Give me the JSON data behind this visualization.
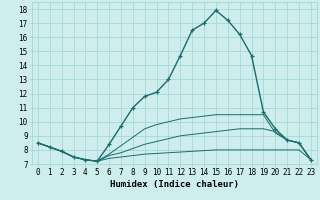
{
  "xlabel": "Humidex (Indice chaleur)",
  "bg_color": "#ceeeed",
  "grid_color": "#9fd4d3",
  "line_color": "#1a6b6b",
  "line1_x": [
    0,
    1,
    2,
    3,
    4,
    5,
    6,
    7,
    8,
    9,
    10,
    11,
    12,
    13,
    14,
    15,
    16,
    17,
    18,
    19,
    20,
    21,
    22,
    23
  ],
  "line1_y": [
    8.5,
    8.2,
    7.9,
    7.5,
    7.3,
    7.2,
    8.4,
    9.7,
    11.0,
    11.8,
    12.1,
    13.0,
    14.7,
    16.5,
    17.0,
    17.9,
    17.2,
    16.2,
    14.7,
    10.7,
    9.5,
    8.7,
    8.5,
    7.3
  ],
  "line2_x": [
    0,
    1,
    2,
    3,
    4,
    5,
    6,
    7,
    8,
    9,
    10,
    11,
    12,
    13,
    14,
    15,
    16,
    17,
    18,
    19,
    20,
    21,
    22,
    23
  ],
  "line2_y": [
    8.5,
    8.2,
    7.9,
    7.5,
    7.3,
    7.2,
    7.4,
    7.5,
    7.6,
    7.7,
    7.75,
    7.8,
    7.85,
    7.9,
    7.95,
    8.0,
    8.0,
    8.0,
    8.0,
    8.0,
    8.0,
    8.0,
    8.0,
    7.3
  ],
  "line3_x": [
    0,
    1,
    2,
    3,
    4,
    5,
    6,
    7,
    8,
    9,
    10,
    11,
    12,
    13,
    14,
    15,
    16,
    17,
    18,
    19,
    20,
    21,
    22,
    23
  ],
  "line3_y": [
    8.5,
    8.2,
    7.9,
    7.5,
    7.3,
    7.2,
    7.6,
    7.8,
    8.1,
    8.4,
    8.6,
    8.8,
    9.0,
    9.1,
    9.2,
    9.3,
    9.4,
    9.5,
    9.5,
    9.5,
    9.3,
    8.7,
    8.5,
    7.3
  ],
  "line4_x": [
    0,
    1,
    2,
    3,
    4,
    5,
    6,
    7,
    8,
    9,
    10,
    11,
    12,
    13,
    14,
    15,
    16,
    17,
    18,
    19,
    20,
    21,
    22,
    23
  ],
  "line4_y": [
    8.5,
    8.2,
    7.9,
    7.5,
    7.3,
    7.2,
    7.7,
    8.3,
    8.9,
    9.5,
    9.8,
    10.0,
    10.2,
    10.3,
    10.4,
    10.5,
    10.5,
    10.5,
    10.5,
    10.5,
    9.2,
    8.7,
    8.5,
    7.3
  ],
  "ylim": [
    7,
    18.5
  ],
  "xlim": [
    -0.5,
    23.5
  ],
  "yticks": [
    7,
    8,
    9,
    10,
    11,
    12,
    13,
    14,
    15,
    16,
    17,
    18
  ],
  "xticks": [
    0,
    1,
    2,
    3,
    4,
    5,
    6,
    7,
    8,
    9,
    10,
    11,
    12,
    13,
    14,
    15,
    16,
    17,
    18,
    19,
    20,
    21,
    22,
    23
  ],
  "tick_fontsize": 5.5,
  "label_fontsize": 6.5,
  "marker": "+"
}
